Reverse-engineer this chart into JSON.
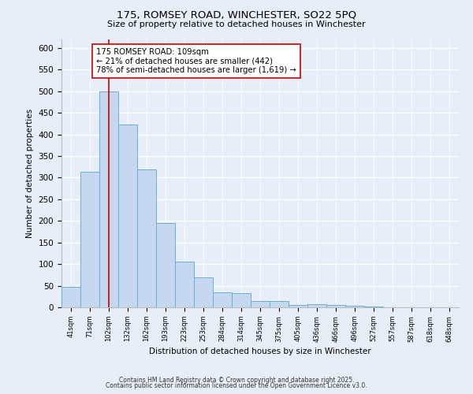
{
  "title_line1": "175, ROMSEY ROAD, WINCHESTER, SO22 5PQ",
  "title_line2": "Size of property relative to detached houses in Winchester",
  "xlabel": "Distribution of detached houses by size in Winchester",
  "ylabel": "Number of detached properties",
  "bar_labels": [
    "41sqm",
    "71sqm",
    "102sqm",
    "132sqm",
    "162sqm",
    "193sqm",
    "223sqm",
    "253sqm",
    "284sqm",
    "314sqm",
    "345sqm",
    "375sqm",
    "405sqm",
    "436sqm",
    "466sqm",
    "496sqm",
    "527sqm",
    "557sqm",
    "587sqm",
    "618sqm",
    "648sqm"
  ],
  "bar_values": [
    47,
    313,
    500,
    423,
    320,
    195,
    106,
    70,
    35,
    33,
    14,
    14,
    5,
    8,
    5,
    3,
    1,
    0,
    0,
    0,
    0
  ],
  "bar_color": "#c5d8f0",
  "bar_edge_color": "#6baed6",
  "vline_x": 2,
  "vline_color": "#cc0000",
  "annotation_text": "175 ROMSEY ROAD: 109sqm\n← 21% of detached houses are smaller (442)\n78% of semi-detached houses are larger (1,619) →",
  "annotation_box_color": "#ffffff",
  "annotation_box_edge_color": "#cc0000",
  "ylim": [
    0,
    620
  ],
  "yticks": [
    0,
    50,
    100,
    150,
    200,
    250,
    300,
    350,
    400,
    450,
    500,
    550,
    600
  ],
  "bg_color": "#e8eef8",
  "grid_color": "#ffffff",
  "footnote_line1": "Contains HM Land Registry data © Crown copyright and database right 2025.",
  "footnote_line2": "Contains public sector information licensed under the Open Government Licence v3.0.",
  "fig_bg_color": "#e8eef8"
}
